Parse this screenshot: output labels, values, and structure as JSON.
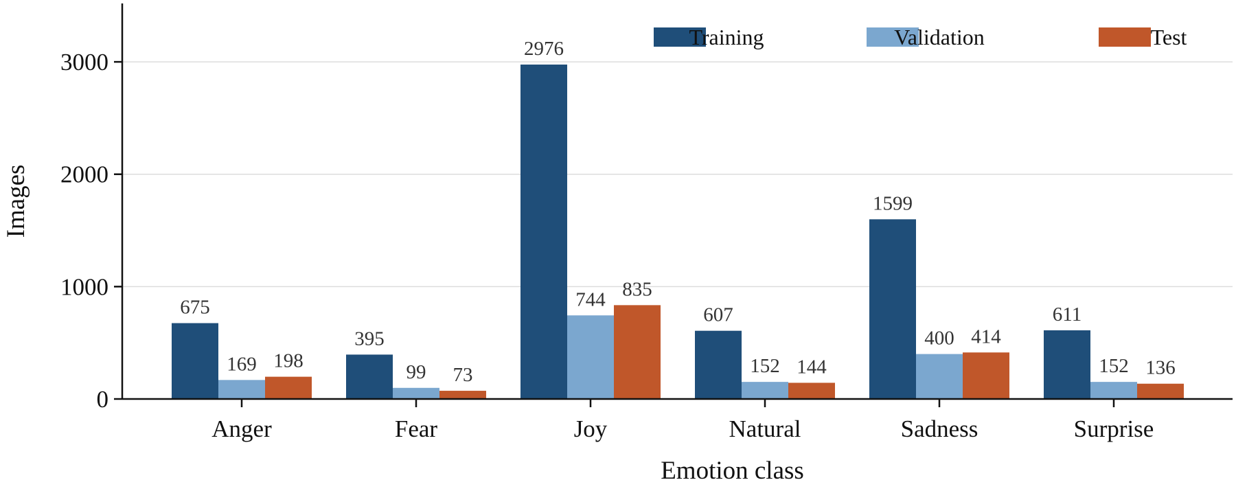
{
  "chart_data": {
    "type": "bar",
    "title": "",
    "xlabel": "Emotion class",
    "ylabel": "Images",
    "categories": [
      "Anger",
      "Fear",
      "Joy",
      "Natural",
      "Sadness",
      "Surprise"
    ],
    "series": [
      {
        "name": "Training",
        "color": "#1f4e79",
        "values": [
          675,
          395,
          2976,
          607,
          1599,
          611
        ]
      },
      {
        "name": "Validation",
        "color": "#7ba7cf",
        "values": [
          169,
          99,
          744,
          152,
          400,
          152
        ]
      },
      {
        "name": "Test",
        "color": "#c0572a",
        "values": [
          198,
          73,
          835,
          144,
          414,
          136
        ]
      }
    ],
    "ylim": [
      0,
      3520
    ],
    "yticks": [
      0,
      1000,
      2000,
      3000
    ],
    "grid": "horizontal",
    "legend_position": "top-right",
    "data_labels": true
  }
}
